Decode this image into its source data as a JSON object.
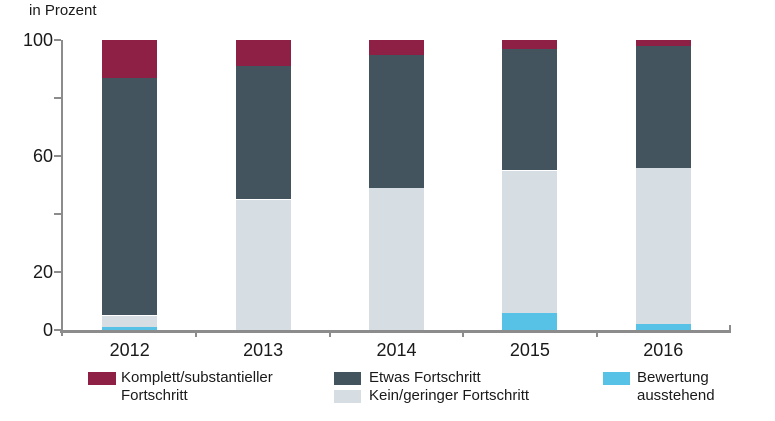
{
  "chart_data": {
    "type": "bar",
    "stacked": true,
    "ylabel": "in Prozent",
    "categories": [
      "2012",
      "2013",
      "2014",
      "2015",
      "2016"
    ],
    "series": [
      {
        "name": "Komplett/substantieller Fortschritt",
        "color": "#8e2045",
        "values": [
          13,
          9,
          5,
          3,
          2
        ]
      },
      {
        "name": "Etwas Fortschritt",
        "color": "#44545f",
        "values": [
          82,
          46,
          46,
          42,
          42
        ]
      },
      {
        "name": "Kein/geringer Fortschritt",
        "color": "#d6dee4",
        "values": [
          4,
          45,
          49,
          49,
          54
        ]
      },
      {
        "name": "Bewertung ausstehend",
        "color": "#57c1e6",
        "values": [
          1,
          0,
          0,
          6,
          2
        ]
      }
    ],
    "ylim": [
      0,
      100
    ],
    "yticks_all": [
      0,
      20,
      40,
      60,
      80,
      100
    ],
    "yticks_labeled": [
      0,
      20,
      60,
      100
    ],
    "grid": false,
    "legend_position": "bottom",
    "axis_color": "#8c8c8c"
  },
  "legend": {
    "items": [
      {
        "series": 0,
        "line1": "Komplett/substantieller",
        "line2": "Fortschritt"
      },
      {
        "series": 1,
        "line1": "Etwas Fortschritt",
        "line2": ""
      },
      {
        "series": 2,
        "line1": "Kein/geringer Fortschritt",
        "line2": ""
      },
      {
        "series": 3,
        "line1": "Bewertung",
        "line2": "ausstehend"
      }
    ]
  }
}
